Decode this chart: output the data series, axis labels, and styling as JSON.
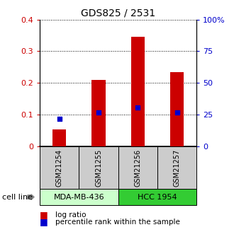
{
  "title": "GDS825 / 2531",
  "samples": [
    "GSM21254",
    "GSM21255",
    "GSM21256",
    "GSM21257"
  ],
  "log_ratio": [
    0.053,
    0.21,
    0.345,
    0.235
  ],
  "percentile_rank": [
    0.22,
    0.265,
    0.305,
    0.268
  ],
  "bar_color": "#cc0000",
  "dot_color": "#0000cc",
  "cell_lines": [
    {
      "label": "MDA-MB-436",
      "samples": [
        0,
        1
      ],
      "color": "#ccffcc"
    },
    {
      "label": "HCC 1954",
      "samples": [
        2,
        3
      ],
      "color": "#33cc33"
    }
  ],
  "ylim_left": [
    0,
    0.4
  ],
  "ylim_right": [
    0,
    1.0
  ],
  "yticks_left": [
    0,
    0.1,
    0.2,
    0.3,
    0.4
  ],
  "ytick_labels_left": [
    "0",
    "0.1",
    "0.2",
    "0.3",
    "0.4"
  ],
  "yticks_right": [
    0,
    0.25,
    0.5,
    0.75,
    1.0
  ],
  "ytick_labels_right": [
    "0",
    "25",
    "50",
    "75",
    "100%"
  ],
  "left_tick_color": "#cc0000",
  "right_tick_color": "#0000cc",
  "cell_line_label": "cell line",
  "legend_log_ratio": "log ratio",
  "legend_percentile": "percentile rank within the sample",
  "sample_box_color": "#cccccc",
  "bar_width": 0.35
}
